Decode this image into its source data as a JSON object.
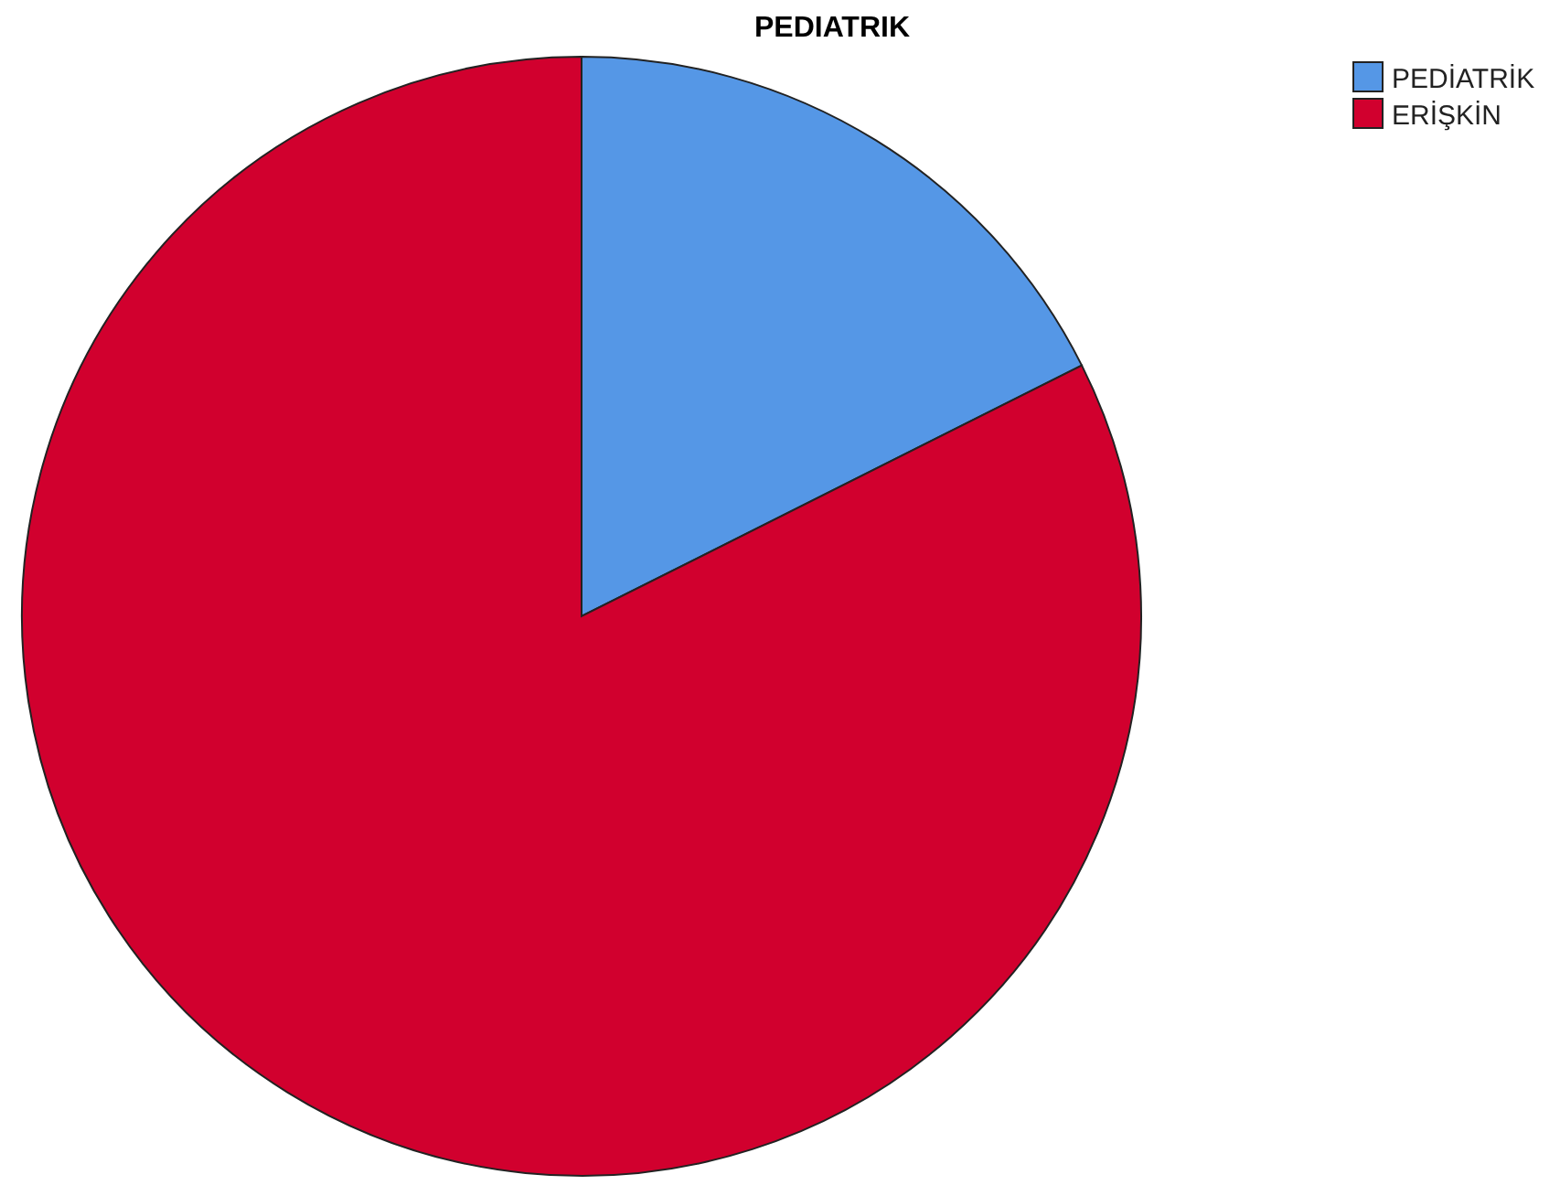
{
  "chart_data": {
    "type": "pie",
    "title": "PEDIATRIK",
    "categories": [
      "PEDİATRİK",
      "ERİŞKİN"
    ],
    "values": [
      17.6,
      82.4
    ],
    "colors": [
      "#5597e6",
      "#d1002e"
    ],
    "legend": "top right"
  }
}
